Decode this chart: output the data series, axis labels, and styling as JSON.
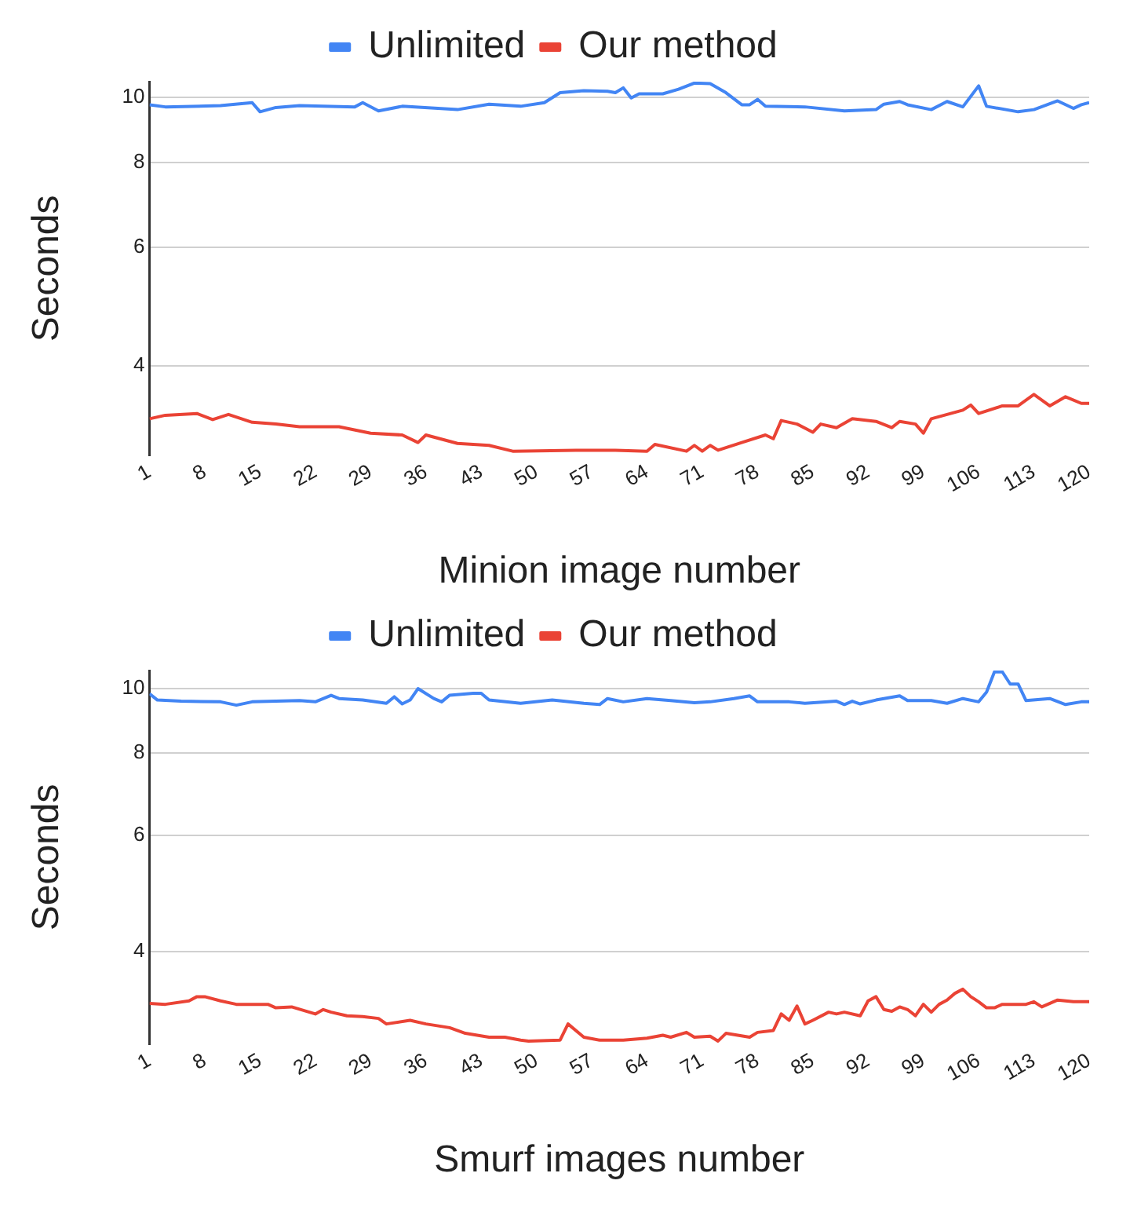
{
  "chart_data": [
    {
      "type": "line",
      "xlabel": "Minion image number",
      "ylabel": "Seconds",
      "log": true,
      "grid": "y",
      "legend": "top",
      "marker": "none",
      "line_style": "solid",
      "xlim": [
        1,
        120
      ],
      "xticks": [
        1,
        8,
        15,
        22,
        29,
        36,
        43,
        50,
        57,
        64,
        71,
        78,
        85,
        92,
        99,
        106,
        113,
        120
      ],
      "ylim": [
        2.95,
        10.55
      ],
      "yticks": [
        4,
        6,
        8,
        10
      ],
      "series": [
        {
          "name": "Unlimited",
          "color": "#4285f4",
          "x": [
            1,
            3,
            10,
            14,
            15,
            17,
            20,
            27,
            28,
            30,
            33,
            40,
            44,
            48,
            51,
            53,
            56,
            59,
            60,
            61,
            62,
            63,
            66,
            68,
            70,
            72,
            74,
            76,
            77,
            78,
            79,
            84,
            89,
            93,
            94,
            96,
            97,
            100,
            102,
            104,
            106,
            107,
            111,
            113,
            116,
            118,
            119,
            120
          ],
          "values": [
            9.75,
            9.68,
            9.72,
            9.82,
            9.52,
            9.66,
            9.72,
            9.68,
            9.82,
            9.55,
            9.7,
            9.59,
            9.77,
            9.7,
            9.82,
            10.16,
            10.23,
            10.21,
            10.16,
            10.33,
            9.98,
            10.12,
            10.12,
            10.28,
            10.5,
            10.48,
            10.16,
            9.75,
            9.75,
            9.93,
            9.7,
            9.68,
            9.55,
            9.59,
            9.77,
            9.86,
            9.75,
            9.59,
            9.86,
            9.68,
            10.4,
            9.7,
            9.52,
            9.59,
            9.88,
            9.63,
            9.75,
            9.82
          ]
        },
        {
          "name": "Our method",
          "color": "#ea4335",
          "x": [
            1,
            3,
            7,
            9,
            11,
            14,
            17,
            20,
            25,
            29,
            33,
            35,
            36,
            40,
            44,
            47,
            55,
            60,
            64,
            65,
            69,
            70,
            71,
            72,
            73,
            76,
            79,
            80,
            81,
            83,
            85,
            86,
            88,
            90,
            93,
            95,
            96,
            98,
            99,
            100,
            104,
            105,
            106,
            109,
            111,
            113,
            115,
            117,
            119,
            120
          ],
          "values": [
            3.34,
            3.38,
            3.4,
            3.33,
            3.39,
            3.3,
            3.28,
            3.25,
            3.25,
            3.18,
            3.16,
            3.08,
            3.16,
            3.07,
            3.05,
            2.99,
            3.0,
            3.0,
            2.99,
            3.06,
            2.99,
            3.05,
            2.99,
            3.05,
            3.0,
            3.08,
            3.16,
            3.12,
            3.32,
            3.28,
            3.19,
            3.28,
            3.24,
            3.34,
            3.31,
            3.24,
            3.31,
            3.28,
            3.18,
            3.34,
            3.44,
            3.5,
            3.4,
            3.49,
            3.49,
            3.63,
            3.49,
            3.6,
            3.52,
            3.52
          ]
        }
      ]
    },
    {
      "type": "line",
      "xlabel": "Smurf images number",
      "ylabel": "Seconds",
      "log": true,
      "grid": "y",
      "legend": "top",
      "marker": "none",
      "line_style": "solid",
      "xlim": [
        1,
        120
      ],
      "xticks": [
        1,
        8,
        15,
        22,
        29,
        36,
        43,
        50,
        57,
        64,
        71,
        78,
        85,
        92,
        99,
        106,
        113,
        120
      ],
      "ylim": [
        2.9,
        10.65
      ],
      "yticks": [
        4,
        6,
        8,
        10
      ],
      "series": [
        {
          "name": "Unlimited",
          "color": "#4285f4",
          "x": [
            1,
            2,
            5,
            10,
            12,
            14,
            20,
            22,
            24,
            25,
            28,
            31,
            32,
            33,
            34,
            35,
            37,
            38,
            39,
            42,
            43,
            44,
            48,
            52,
            56,
            58,
            59,
            61,
            64,
            67,
            70,
            72,
            75,
            77,
            78,
            82,
            84,
            88,
            89,
            90,
            91,
            93,
            96,
            97,
            100,
            102,
            104,
            106,
            107,
            108,
            109,
            110,
            111,
            112,
            115,
            117,
            119,
            120
          ],
          "values": [
            9.82,
            9.61,
            9.57,
            9.55,
            9.44,
            9.55,
            9.59,
            9.55,
            9.77,
            9.66,
            9.61,
            9.5,
            9.72,
            9.48,
            9.61,
            10.0,
            9.66,
            9.55,
            9.77,
            9.84,
            9.84,
            9.61,
            9.5,
            9.61,
            9.5,
            9.46,
            9.66,
            9.55,
            9.66,
            9.59,
            9.52,
            9.55,
            9.66,
            9.75,
            9.55,
            9.55,
            9.5,
            9.57,
            9.46,
            9.57,
            9.48,
            9.61,
            9.75,
            9.59,
            9.59,
            9.5,
            9.66,
            9.55,
            9.88,
            10.6,
            10.6,
            10.16,
            10.16,
            9.59,
            9.66,
            9.46,
            9.55,
            9.55
          ]
        },
        {
          "name": "Our method",
          "color": "#ea4335",
          "x": [
            1,
            3,
            6,
            7,
            8,
            10,
            12,
            16,
            17,
            19,
            22,
            23,
            24,
            26,
            28,
            30,
            31,
            34,
            36,
            39,
            41,
            44,
            46,
            48,
            49,
            53,
            54,
            56,
            58,
            61,
            64,
            66,
            67,
            69,
            70,
            72,
            73,
            74,
            77,
            78,
            80,
            81,
            82,
            83,
            84,
            85,
            87,
            88,
            89,
            91,
            92,
            93,
            94,
            95,
            96,
            97,
            98,
            99,
            100,
            101,
            102,
            103,
            104,
            105,
            106,
            107,
            108,
            109,
            112,
            113,
            114,
            116,
            118,
            120
          ],
          "values": [
            3.34,
            3.33,
            3.37,
            3.42,
            3.42,
            3.37,
            3.33,
            3.33,
            3.29,
            3.3,
            3.22,
            3.27,
            3.24,
            3.2,
            3.19,
            3.17,
            3.11,
            3.15,
            3.11,
            3.07,
            3.01,
            2.97,
            2.97,
            2.94,
            2.93,
            2.94,
            3.11,
            2.97,
            2.94,
            2.94,
            2.96,
            2.99,
            2.97,
            3.02,
            2.97,
            2.98,
            2.93,
            3.01,
            2.97,
            3.02,
            3.04,
            3.22,
            3.15,
            3.31,
            3.11,
            3.15,
            3.24,
            3.22,
            3.24,
            3.2,
            3.37,
            3.42,
            3.27,
            3.25,
            3.3,
            3.27,
            3.2,
            3.33,
            3.24,
            3.33,
            3.38,
            3.46,
            3.51,
            3.42,
            3.36,
            3.29,
            3.29,
            3.33,
            3.33,
            3.36,
            3.3,
            3.38,
            3.36,
            3.36
          ]
        }
      ]
    }
  ]
}
